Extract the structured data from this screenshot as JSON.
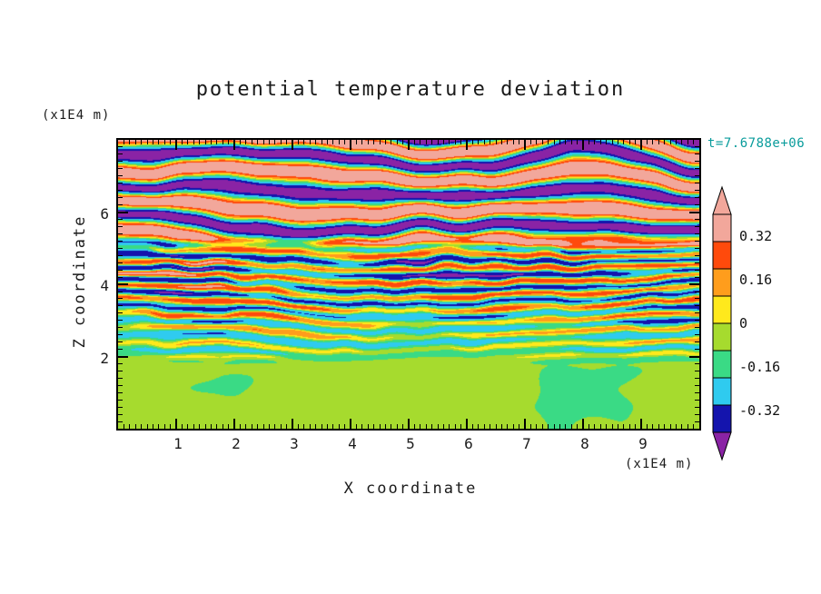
{
  "title": "potential temperature deviation",
  "timestamp": "t=7.6788e+06",
  "axes": {
    "x": {
      "label": "X coordinate",
      "unit": "(x1E4 m)",
      "min": 0,
      "max": 10,
      "major_ticks": [
        1,
        2,
        3,
        4,
        5,
        6,
        7,
        8,
        9
      ]
    },
    "z": {
      "label": "Z coordinate",
      "unit": "(x1E4 m)",
      "min": 0,
      "max": 8,
      "major_ticks": [
        2,
        4,
        6
      ]
    }
  },
  "colorbar": {
    "labels": [
      "0.32",
      "0.16",
      "0",
      "-0.16",
      "-0.32"
    ],
    "label_values": [
      0.32,
      0.16,
      0,
      -0.16,
      -0.32
    ],
    "range": [
      -0.4,
      0.4
    ],
    "style": "discrete filled bar with pointed overflow/underflow tips"
  },
  "chart_data": {
    "type": "heatmap",
    "title": "potential temperature deviation",
    "xlabel": "X coordinate",
    "ylabel": "Z coordinate",
    "x_unit": "(x1E4 m)",
    "z_unit": "(x1E4 m)",
    "x_range": [
      0,
      10
    ],
    "z_range": [
      0,
      8
    ],
    "time_label": "t=7.6788e+06",
    "contour_levels": [
      -0.32,
      -0.16,
      0,
      0.16,
      0.32
    ],
    "grid": false,
    "legend_position": "right colorbar",
    "palette": [
      {
        "name": "purple",
        "hex": "#8A23A5",
        "upto": -0.4
      },
      {
        "name": "navy",
        "hex": "#1414AD",
        "upto": -0.26
      },
      {
        "name": "cyan",
        "hex": "#2FCBEF",
        "upto": -0.1
      },
      {
        "name": "green",
        "hex": "#3ADA85",
        "upto": 0.02
      },
      {
        "name": "chartreuse",
        "hex": "#A6DB2E",
        "upto": 0.1
      },
      {
        "name": "yellow",
        "hex": "#FFE91C",
        "upto": 0.18
      },
      {
        "name": "orange",
        "hex": "#FF9D1C",
        "upto": 0.28
      },
      {
        "name": "red",
        "hex": "#FF4A0C",
        "upto": 0.4
      },
      {
        "name": "salmon",
        "hex": "#F2A79B",
        "upto": 99
      }
    ],
    "field_structure": {
      "regions": [
        {
          "z_range": [
            0,
            2
          ],
          "description": "near-uniform weakly positive deviation; green with yellow-green patches and wavy upper edge"
        },
        {
          "z_range": [
            2,
            5
          ],
          "description": "fine-scale turbulent horizontal streaks; cyan/green background with yellow-orange-red positive streaks and navy negative patches, amplitude growing with height"
        },
        {
          "z_range": [
            5,
            8
          ],
          "description": "large-amplitude wavy bands; salmon (>0.32) background alternating with purple (<-0.32) bands, thin yellow/green/cyan fringes at transitions"
        }
      ]
    }
  }
}
